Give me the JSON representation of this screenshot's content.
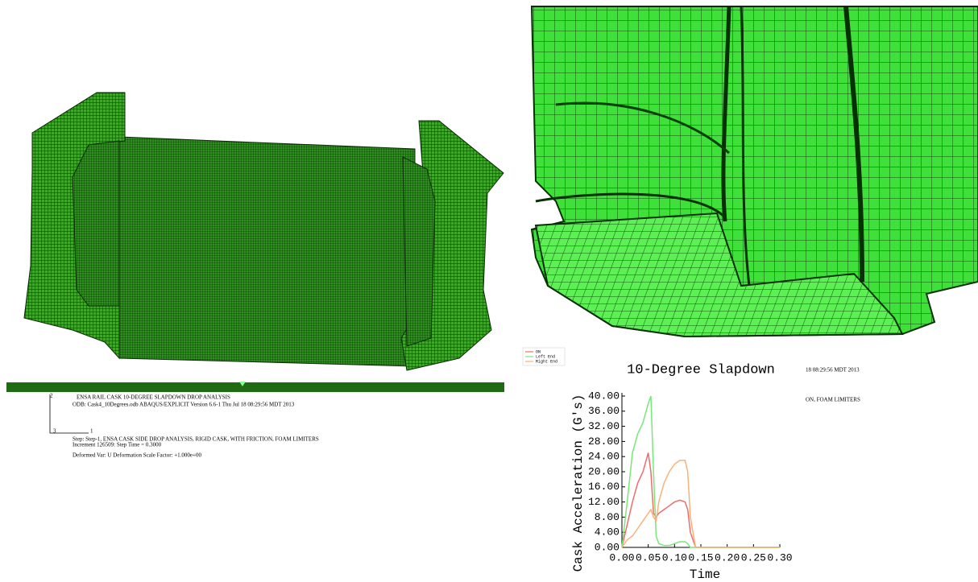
{
  "left_view": {
    "triad_labels": [
      "2",
      "3",
      "1"
    ],
    "info_lines": [
      "ENSA RAIL CASK 10-DEGREE SLAPDOWN DROP ANALYSIS",
      "ODB: Cask4_10Degrees.odb    ABAQUS/EXPLICIT Version 6.6-1    Thu Jul 18 08:29:56 MDT 2013",
      "Step: Step-1,  ENSA CASK SIDE DROP ANALYSIS, RIGID CASK, WITH FRICTION, FOAM LIMITERS",
      "Increment    126509: Step Time =    0.3000",
      "Deformed Var: U   Deformation Scale Factor: +1.000e+00"
    ]
  },
  "chart_data": {
    "type": "line",
    "title": "10-Degree Slapdown",
    "annotations": [
      "18 08:29:56 MDT 2013",
      "ON, FOAM LIMITERS"
    ],
    "xlabel": "Time",
    "ylabel": "Cask Acceleration (G's)",
    "legend": "upper left",
    "x": [
      0,
      0.01,
      0.02,
      0.03,
      0.04,
      0.05,
      0.055,
      0.06,
      0.065,
      0.07,
      0.08,
      0.09,
      0.1,
      0.11,
      0.12,
      0.125,
      0.13,
      0.14,
      0.15,
      0.2,
      0.25,
      0.3
    ],
    "series": [
      {
        "name": "ON",
        "color": "#f26b6b",
        "values": [
          0,
          6,
          12,
          17,
          20,
          25,
          20,
          9,
          8,
          9,
          10,
          11,
          12,
          12.5,
          12,
          10,
          4,
          0,
          0,
          0,
          0,
          0
        ]
      },
      {
        "name": "Left End",
        "color": "#77e877",
        "values": [
          0,
          12,
          25,
          30,
          33,
          38,
          40,
          20,
          3,
          1,
          0.5,
          0.5,
          1,
          1.5,
          1.5,
          1,
          0,
          0,
          0,
          0,
          0,
          0
        ]
      },
      {
        "name": "Right End",
        "color": "#f7b27a",
        "values": [
          0,
          2,
          3,
          5,
          7,
          9,
          10,
          8,
          7,
          12,
          17,
          20,
          22,
          23,
          23,
          20,
          8,
          0,
          0,
          0,
          0,
          0
        ]
      }
    ],
    "xlim": [
      0,
      0.3
    ],
    "xticks": [
      {
        "value": 0,
        "label": "0.00"
      },
      {
        "value": 0.05,
        "label": "0.05"
      },
      {
        "value": 0.1,
        "label": "0.10"
      },
      {
        "value": 0.15,
        "label": "0.15"
      },
      {
        "value": 0.2,
        "label": "0.20"
      },
      {
        "value": 0.25,
        "label": "0.25"
      },
      {
        "value": 0.3,
        "label": "0.30"
      }
    ],
    "ylim": [
      0,
      40
    ],
    "yticks": [
      {
        "value": 0,
        "label": "0.00"
      },
      {
        "value": 4,
        "label": "4.00"
      },
      {
        "value": 8,
        "label": "8.00"
      },
      {
        "value": 12,
        "label": "12.00"
      },
      {
        "value": 16,
        "label": "16.00"
      },
      {
        "value": 20,
        "label": "20.00"
      },
      {
        "value": 24,
        "label": "24.00"
      },
      {
        "value": 28,
        "label": "28.00"
      },
      {
        "value": 32,
        "label": "32.00"
      },
      {
        "value": 36,
        "label": "36.00"
      },
      {
        "value": 40,
        "label": "40.00"
      }
    ]
  }
}
